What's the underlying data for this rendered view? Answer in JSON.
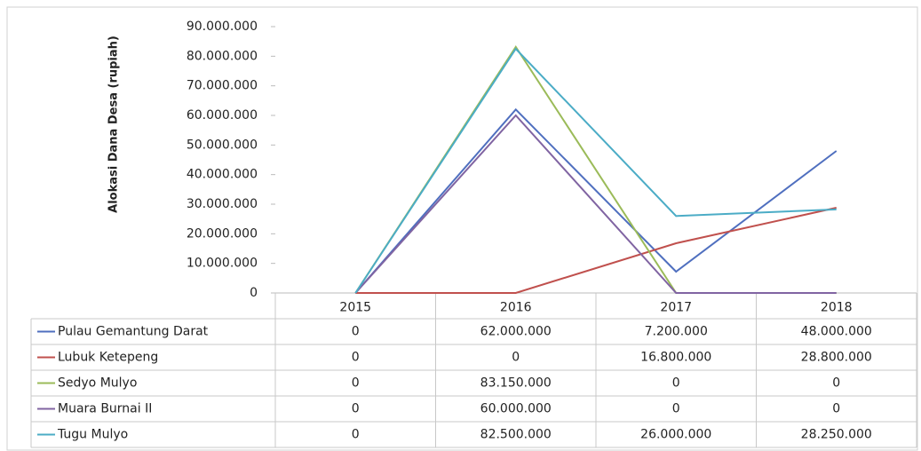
{
  "chart_data": {
    "type": "line",
    "y_axis_label": "Alokasi Dana Desa (rupiah)",
    "categories": [
      "2015",
      "2016",
      "2017",
      "2018"
    ],
    "series": [
      {
        "name": "Pulau Gemantung Darat",
        "color": "#4f6fbf",
        "values": [
          0,
          62000000,
          7200000,
          48000000
        ],
        "value_labels": [
          "0",
          "62.000.000",
          "7.200.000",
          "48.000.000"
        ]
      },
      {
        "name": "Lubuk Ketepeng",
        "color": "#c0504d",
        "values": [
          0,
          0,
          16800000,
          28800000
        ],
        "value_labels": [
          "0",
          "0",
          "16.800.000",
          "28.800.000"
        ]
      },
      {
        "name": "Sedyo Mulyo",
        "color": "#9bbb59",
        "values": [
          0,
          83150000,
          0,
          0
        ],
        "value_labels": [
          "0",
          "83.150.000",
          "0",
          "0"
        ]
      },
      {
        "name": "Muara Burnai II",
        "color": "#8064a2",
        "values": [
          0,
          60000000,
          0,
          0
        ],
        "value_labels": [
          "0",
          "60.000.000",
          "0",
          "0"
        ]
      },
      {
        "name": "Tugu Mulyo",
        "color": "#4bacc6",
        "values": [
          0,
          82500000,
          26000000,
          28250000
        ],
        "value_labels": [
          "0",
          "82.500.000",
          "26.000.000",
          "28.250.000"
        ]
      }
    ],
    "ylim": [
      0,
      90000000
    ],
    "yticks": [
      0,
      {
        "value": 10000000,
        "label": "10.000.000"
      },
      {
        "value": 20000000,
        "label": "20.000.000"
      },
      {
        "value": 30000000,
        "label": "30.000.000"
      },
      {
        "value": 40000000,
        "label": "40.000.000"
      },
      {
        "value": 50000000,
        "label": "50.000.000"
      },
      {
        "value": 60000000,
        "label": "60.000.000"
      },
      {
        "value": 70000000,
        "label": "70.000.000"
      },
      {
        "value": 80000000,
        "label": "80.000.000"
      },
      {
        "value": 90000000,
        "label": "90.000.000"
      }
    ],
    "grid": false
  }
}
